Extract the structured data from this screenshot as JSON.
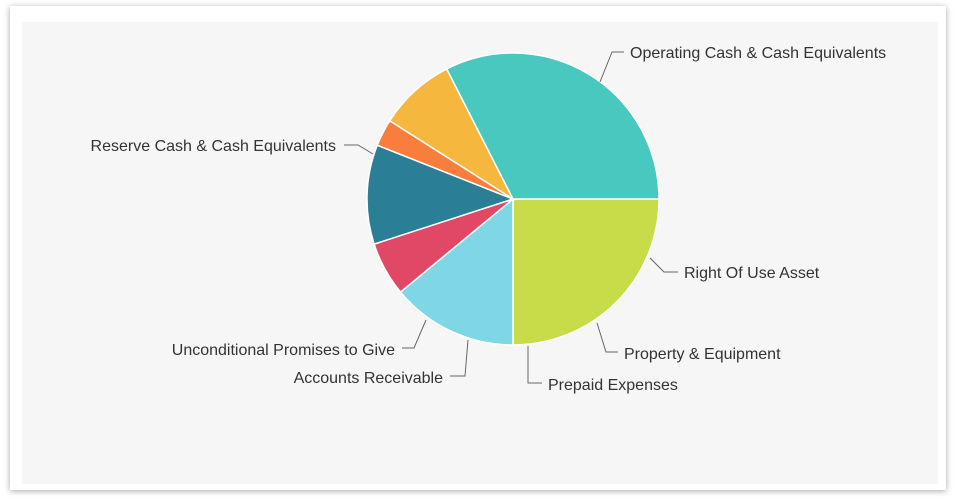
{
  "chart_data": {
    "type": "pie",
    "title": "",
    "slices": [
      {
        "label": "Operating Cash & Cash Equivalents",
        "value": 25.0,
        "color": "#c8dc4a"
      },
      {
        "label": "Right Of Use Asset",
        "value": 14.0,
        "color": "#7fd6e4"
      },
      {
        "label": "Property & Equipment",
        "value": 6.0,
        "color": "#e04866"
      },
      {
        "label": "Prepaid Expenses",
        "value": 11.0,
        "color": "#2a7f97"
      },
      {
        "label": "Accounts Receivable",
        "value": 3.0,
        "color": "#f97e3e"
      },
      {
        "label": "Unconditional Promises to Give",
        "value": 8.5,
        "color": "#f6b73e"
      },
      {
        "label": "Reserve Cash & Cash Equivalents",
        "value": 32.5,
        "color": "#48c8be"
      }
    ],
    "start_angle_deg": 0,
    "direction": "clockwise",
    "legend": "none",
    "data_labels": "outside with leader lines"
  }
}
